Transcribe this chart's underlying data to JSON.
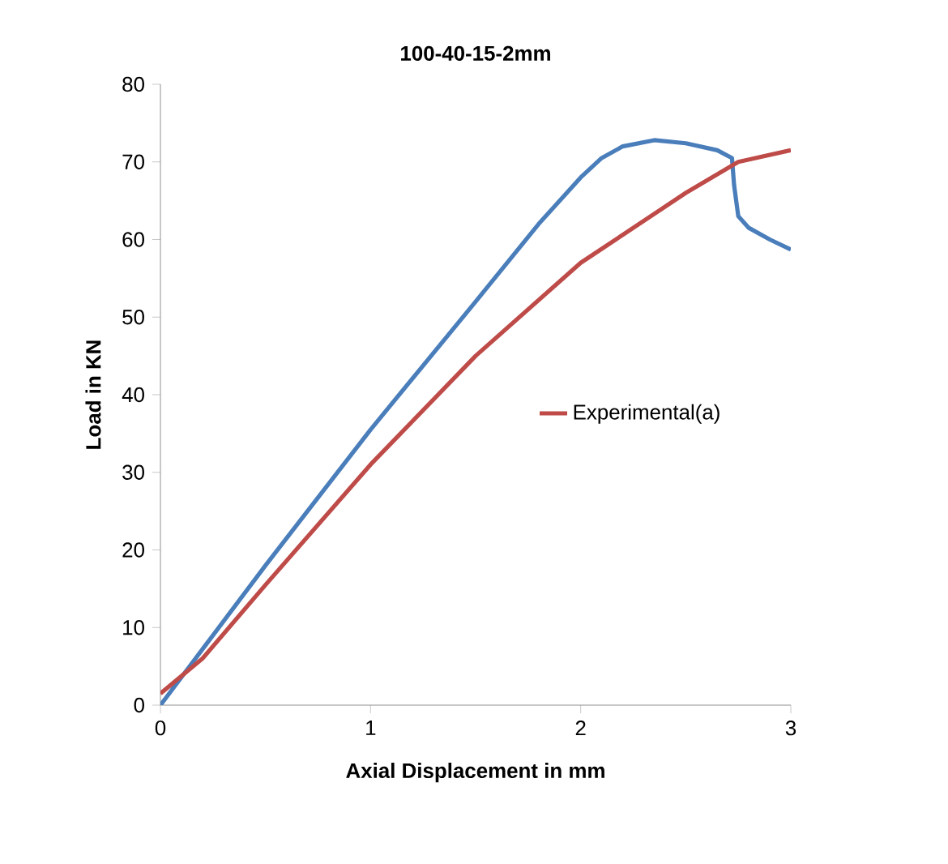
{
  "chart_data": {
    "type": "line",
    "title": "100-40-15-2mm",
    "xlabel": "Axial Displacement in mm",
    "ylabel": "Load in KN",
    "xlim": [
      0,
      3
    ],
    "xticks": [
      0,
      1,
      2,
      3
    ],
    "ylim": [
      0,
      80
    ],
    "yticks": [
      0,
      10,
      20,
      30,
      40,
      50,
      60,
      70,
      80
    ],
    "grid": false,
    "legend": "right",
    "marker": "none",
    "line_style": "solid",
    "series": [
      {
        "color": "#4a7ebb",
        "x": [
          0,
          0.5,
          1,
          1.5,
          1.8,
          2,
          2.1,
          2.2,
          2.35,
          2.5,
          2.65,
          2.72,
          2.73,
          2.75,
          2.8,
          2.9,
          3
        ],
        "values": [
          0,
          18,
          35.5,
          52,
          62,
          68,
          70.5,
          72,
          72.8,
          72.4,
          71.5,
          70.5,
          67,
          63,
          61.5,
          60,
          58.7
        ]
      },
      {
        "name": "Experimental(a)",
        "color": "#be4b48",
        "x": [
          0,
          0.2,
          0.5,
          1,
          1.5,
          2,
          2.5,
          2.75,
          3
        ],
        "values": [
          1.5,
          6,
          15.5,
          31,
          45,
          57,
          66,
          70,
          71.5
        ]
      }
    ]
  }
}
